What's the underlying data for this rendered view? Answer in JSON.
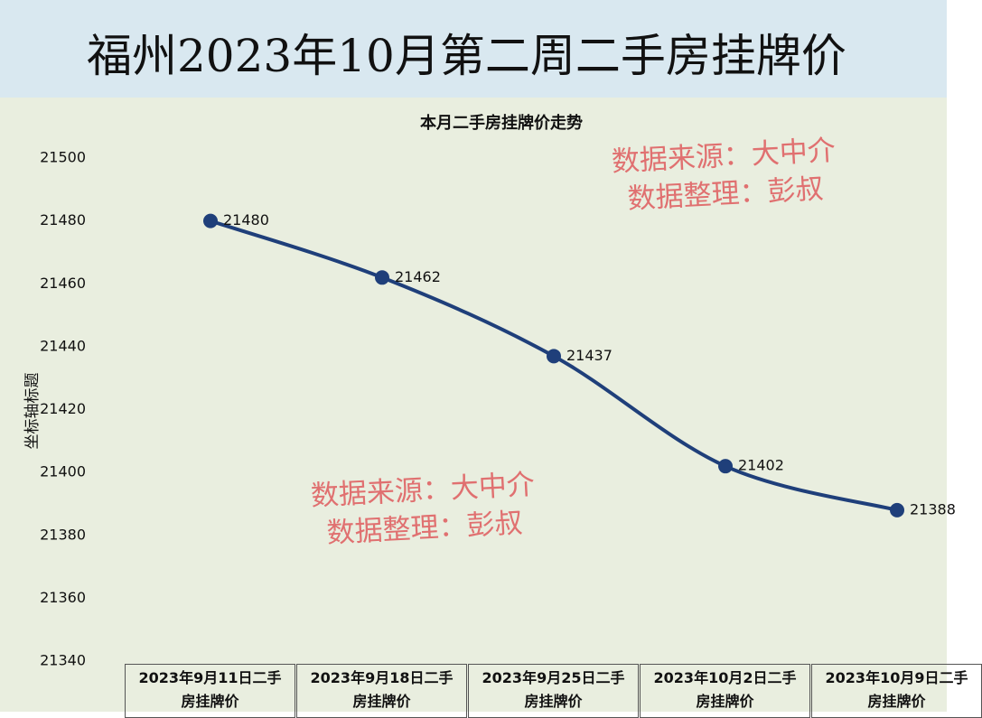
{
  "header": {
    "title": "福州2023年10月第二周二手房挂牌价"
  },
  "chart_data": {
    "type": "line",
    "title": "本月二手房挂牌价走势",
    "y_label": "坐标轴标题",
    "categories": [
      "2023年9月11日二手房挂牌价",
      "2023年9月18日二手房挂牌价",
      "2023年9月25日二手房挂牌价",
      "2023年10月2日二手房挂牌价",
      "2023年10月9日二手房挂牌价"
    ],
    "series": [
      {
        "name": "挂牌价",
        "color": "#1f3f7a",
        "values": [
          21480,
          21462,
          21437,
          21402,
          21388
        ]
      }
    ],
    "ylim": [
      21340,
      21500
    ],
    "yticks": [
      21340,
      21360,
      21380,
      21400,
      21420,
      21440,
      21460,
      21480,
      21500
    ],
    "smooth": true,
    "annotations": [
      [
        "数据来源：大中介",
        "数据整理：彭叔"
      ],
      [
        "数据来源：大中介",
        "数据整理：彭叔"
      ]
    ]
  }
}
